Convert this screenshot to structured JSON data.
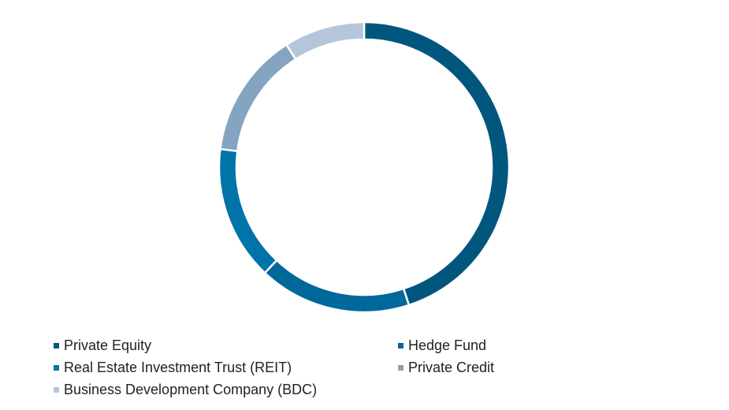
{
  "chart_data": {
    "type": "pie",
    "donut": true,
    "categories": [
      "Private Equity",
      "Hedge Fund",
      "Real Estate Investment Trust (REIT)",
      "Private Credit",
      "Business Development Company (BDC)"
    ],
    "values": [
      45,
      17,
      15,
      14,
      9
    ],
    "colors": [
      "#00567d",
      "#00689a",
      "#0074a8",
      "#84a4c2",
      "#b5c6da"
    ],
    "legend_position": "bottom"
  },
  "legend": {
    "items": [
      {
        "label": "Private Equity",
        "color": "#00567d"
      },
      {
        "label": "Hedge Fund",
        "color": "#00689a"
      },
      {
        "label": "Real Estate Investment Trust (REIT)",
        "color": "#0074a8"
      },
      {
        "label": "Private Credit",
        "color": "#84a4c2"
      },
      {
        "label": "Business Development Company (BDC)",
        "color": "#b5c6da"
      }
    ]
  }
}
